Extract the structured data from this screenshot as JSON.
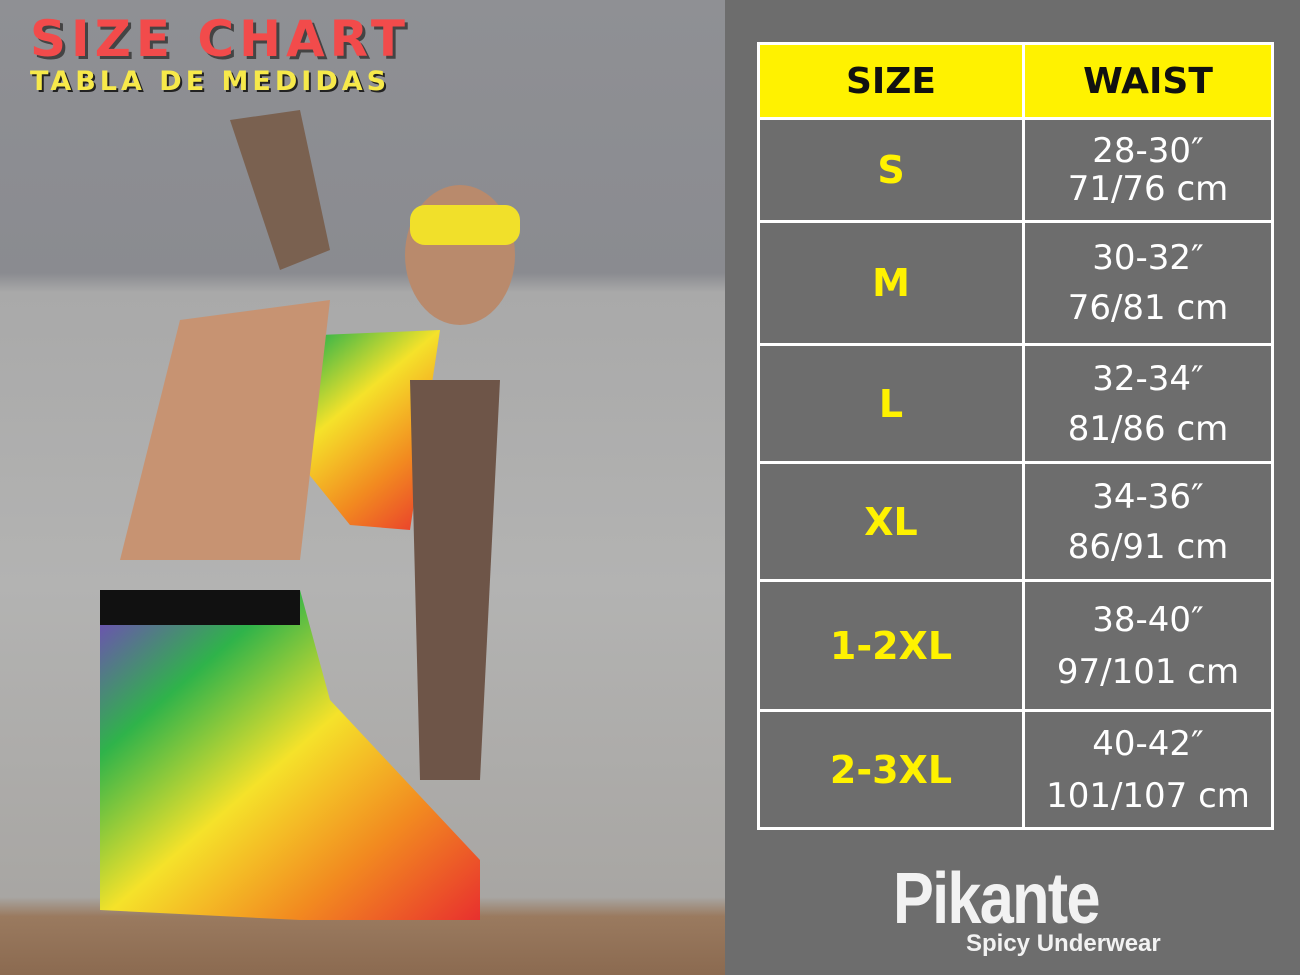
{
  "title": "SIZE CHART",
  "subtitle": "TABLA DE MEDIDAS",
  "table": {
    "headers": [
      "SIZE",
      "WAIST"
    ],
    "rows": [
      {
        "size": "S",
        "inches": "28-30″",
        "cm": "71/76 cm"
      },
      {
        "size": "M",
        "inches": "30-32″",
        "cm": "76/81 cm"
      },
      {
        "size": "L",
        "inches": "32-34″",
        "cm": "81/86 cm"
      },
      {
        "size": "XL",
        "inches": "34-36″",
        "cm": "86/91 cm"
      },
      {
        "size": "1-2XL",
        "inches": "38-40″",
        "cm": "97/101 cm"
      },
      {
        "size": "2-3XL",
        "inches": "40-42″",
        "cm": "101/107 cm"
      }
    ]
  },
  "brand": {
    "name": "Pikante",
    "tagline": "Spicy Underwear"
  },
  "colors": {
    "header": "#fff200",
    "size_text": "#fff200",
    "panel": "#6d6d6d",
    "title": "#f24b4b"
  }
}
